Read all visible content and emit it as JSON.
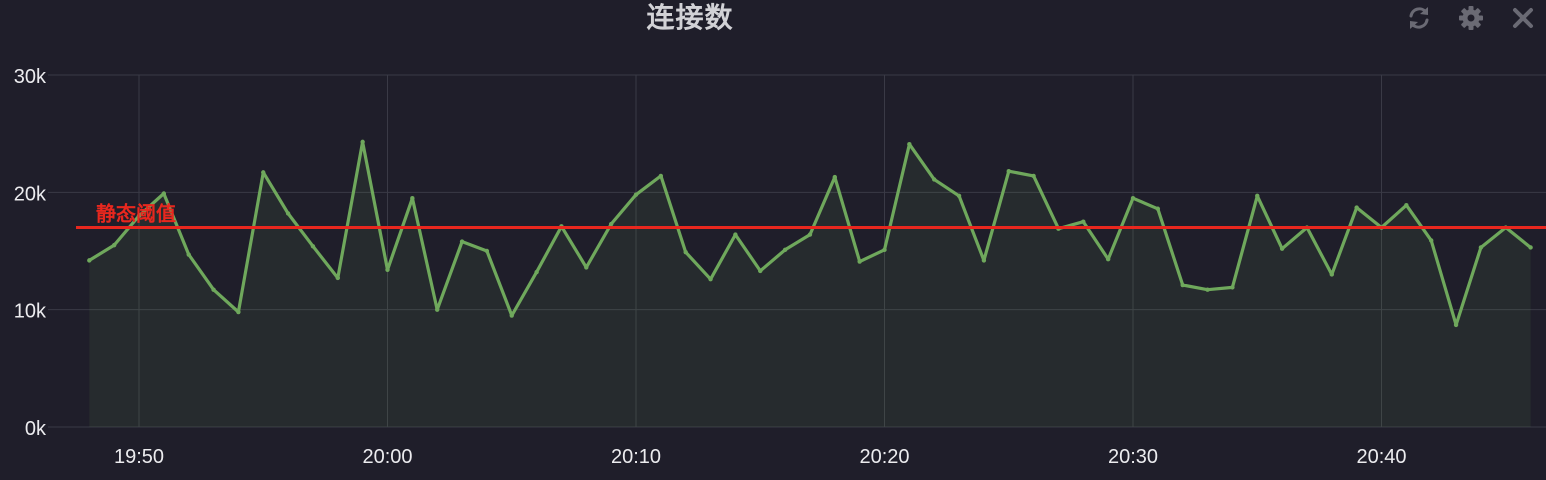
{
  "panel": {
    "title": "连接数"
  },
  "toolbar": {
    "icons": [
      "refresh-icon",
      "gear-icon",
      "close-icon"
    ]
  },
  "colors": {
    "background": "#1f1e2a",
    "series": "#6fa85c",
    "threshold": "#e8271e",
    "grid": "#3a3a46"
  },
  "chart_data": {
    "type": "area",
    "title": "连接数",
    "xlabel": "",
    "ylabel": "",
    "ylim": [
      0,
      30000
    ],
    "y_ticks": [
      0,
      10000,
      20000,
      30000
    ],
    "y_tick_labels": [
      "0k",
      "10k",
      "20k",
      "30k"
    ],
    "x_ticks": [
      "19:50",
      "20:00",
      "20:10",
      "20:20",
      "20:30",
      "20:40"
    ],
    "x_tick_minutes": [
      "19:50",
      "20:00",
      "20:10",
      "20:20",
      "20:30",
      "20:40"
    ],
    "grid": true,
    "threshold": {
      "label": "静态阈值",
      "value": 17000
    },
    "series": [
      {
        "x": [
          "19:48",
          "19:49",
          "19:50",
          "19:51",
          "19:52",
          "19:53",
          "19:54",
          "19:55",
          "19:56",
          "19:57",
          "19:58",
          "19:59",
          "20:00",
          "20:01",
          "20:02",
          "20:03",
          "20:04",
          "20:05",
          "20:06",
          "20:07",
          "20:08",
          "20:09",
          "20:10",
          "20:11",
          "20:12",
          "20:13",
          "20:14",
          "20:15",
          "20:16",
          "20:17",
          "20:18",
          "20:19",
          "20:20",
          "20:21",
          "20:22",
          "20:23",
          "20:24",
          "20:25",
          "20:26",
          "20:27",
          "20:28",
          "20:29",
          "20:30",
          "20:31",
          "20:32",
          "20:33",
          "20:34",
          "20:35",
          "20:36",
          "20:37",
          "20:38",
          "20:39",
          "20:40",
          "20:41",
          "20:42",
          "20:43",
          "20:44",
          "20:45",
          "20:46"
        ],
        "values": [
          14200,
          15500,
          18000,
          19900,
          14700,
          11700,
          9800,
          21700,
          18200,
          15400,
          12700,
          24300,
          13400,
          19500,
          10000,
          15800,
          15000,
          9500,
          13200,
          17100,
          13600,
          17300,
          19800,
          21400,
          14900,
          12600,
          16400,
          13300,
          15100,
          16400,
          21300,
          14100,
          15100,
          24100,
          21100,
          19700,
          14200,
          21800,
          21400,
          16900,
          17500,
          14300,
          19500,
          18600,
          12100,
          11700,
          11900,
          19700,
          15200,
          17000,
          13000,
          18700,
          17000,
          18900,
          15900,
          8700,
          15300,
          17000,
          15300
        ]
      }
    ]
  }
}
